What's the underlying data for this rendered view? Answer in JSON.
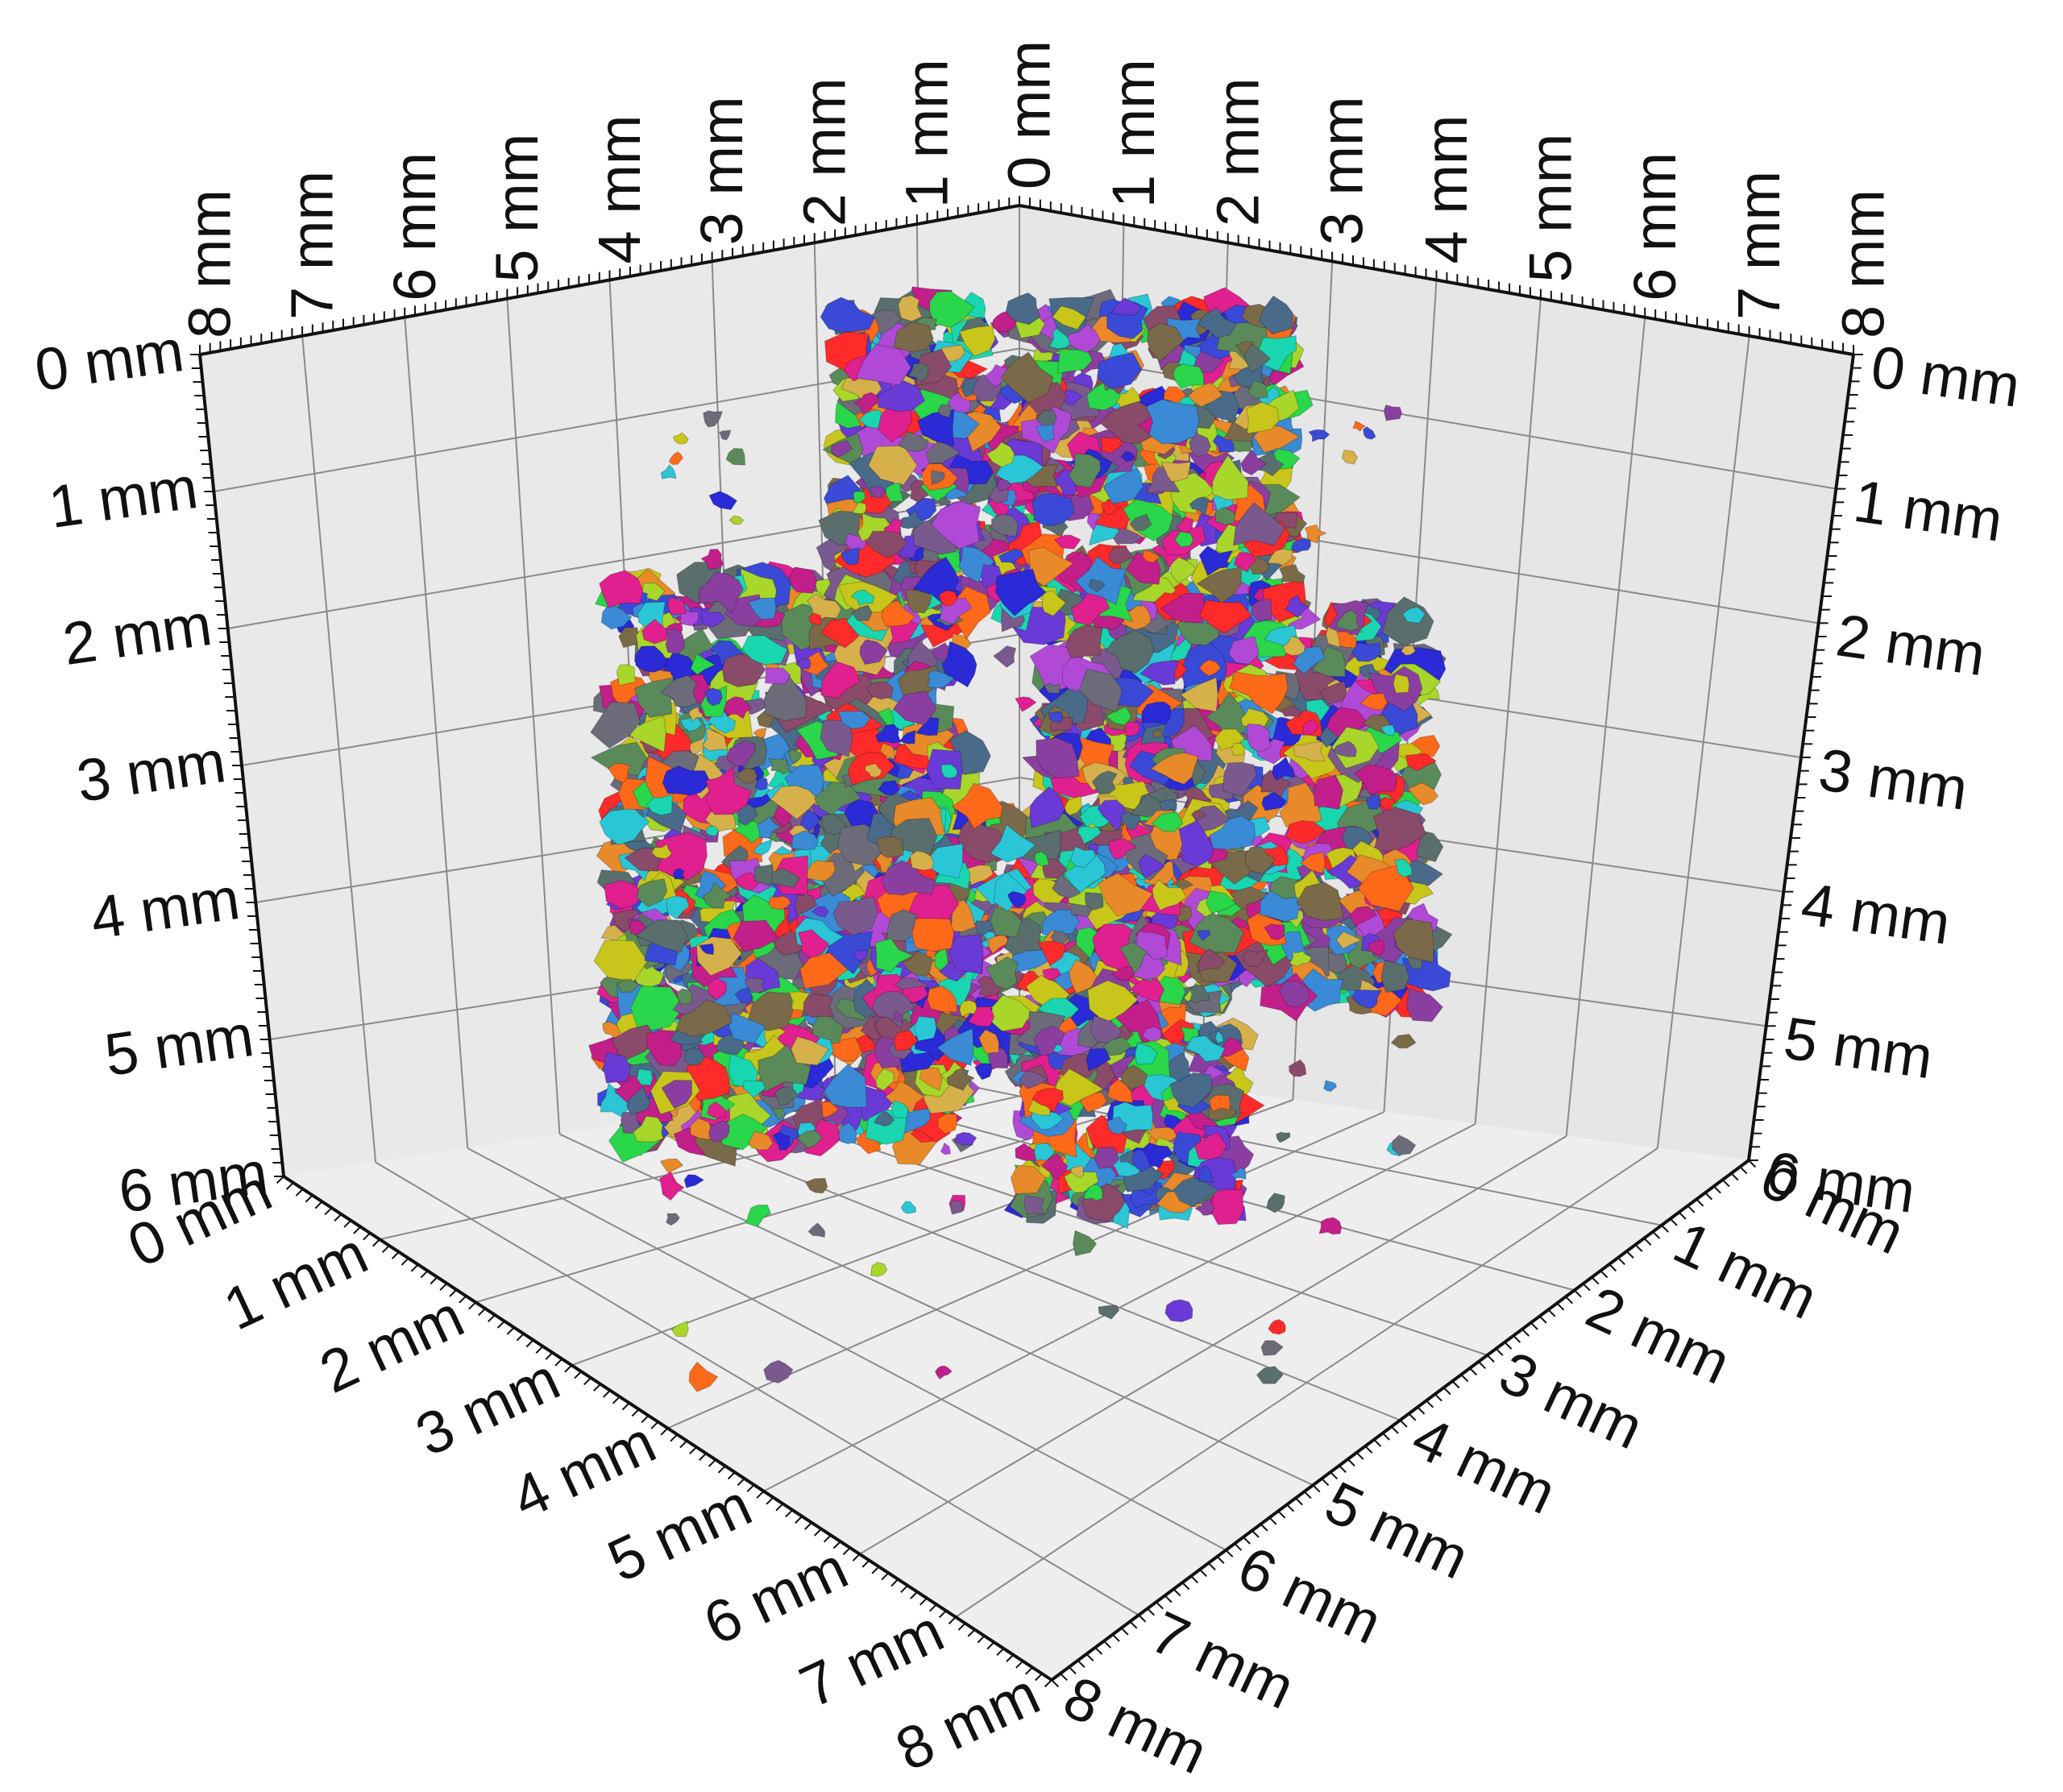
{
  "chart_data": {
    "type": "scatter",
    "description_kind": "3d-volume-render",
    "axes": {
      "top_left": {
        "ticks": [
          "0 mm",
          "1 mm",
          "2 mm",
          "3 mm",
          "4 mm",
          "5 mm",
          "6 mm",
          "7 mm",
          "8 mm"
        ],
        "range": [
          0,
          8
        ]
      },
      "top_right": {
        "ticks": [
          "0 mm",
          "1 mm",
          "2 mm",
          "3 mm",
          "4 mm",
          "5 mm",
          "6 mm",
          "7 mm",
          "8 mm"
        ],
        "range": [
          0,
          8
        ]
      },
      "left_vertical": {
        "ticks": [
          "0 mm",
          "1 mm",
          "2 mm",
          "3 mm",
          "4 mm",
          "5 mm",
          "6 mm"
        ],
        "range": [
          0,
          6
        ]
      },
      "right_vertical": {
        "ticks": [
          "0 mm",
          "1 mm",
          "2 mm",
          "3 mm",
          "4 mm",
          "5 mm",
          "6 mm"
        ],
        "range": [
          0,
          6
        ]
      },
      "bottom_left": {
        "ticks": [
          "0 mm",
          "1 mm",
          "2 mm",
          "3 mm",
          "4 mm",
          "5 mm",
          "6 mm",
          "7 mm",
          "8 mm"
        ],
        "range": [
          0,
          8
        ]
      },
      "bottom_right": {
        "ticks": [
          "0 mm",
          "1 mm",
          "2 mm",
          "3 mm",
          "4 mm",
          "5 mm",
          "6 mm",
          "7 mm",
          "8 mm"
        ],
        "range": [
          0,
          8
        ]
      }
    },
    "grid": true,
    "particle_palette": [
      "#5a6e6e",
      "#6b6b7a",
      "#7a5a8e",
      "#8a3fa0",
      "#c21f8a",
      "#e0208f",
      "#ff2a2a",
      "#ff6a1a",
      "#e88a2a",
      "#c8c61a",
      "#a8d62a",
      "#2ad64a",
      "#1ad6b0",
      "#2ac6d6",
      "#3a8ad6",
      "#3a4ad6",
      "#6a3ad6",
      "#b04ad6",
      "#7a6a4a",
      "#4a6a8a",
      "#8a4a6a",
      "#5a8a5a",
      "#d6b04a",
      "#2a2ad6"
    ],
    "particle_seed": 7
  }
}
